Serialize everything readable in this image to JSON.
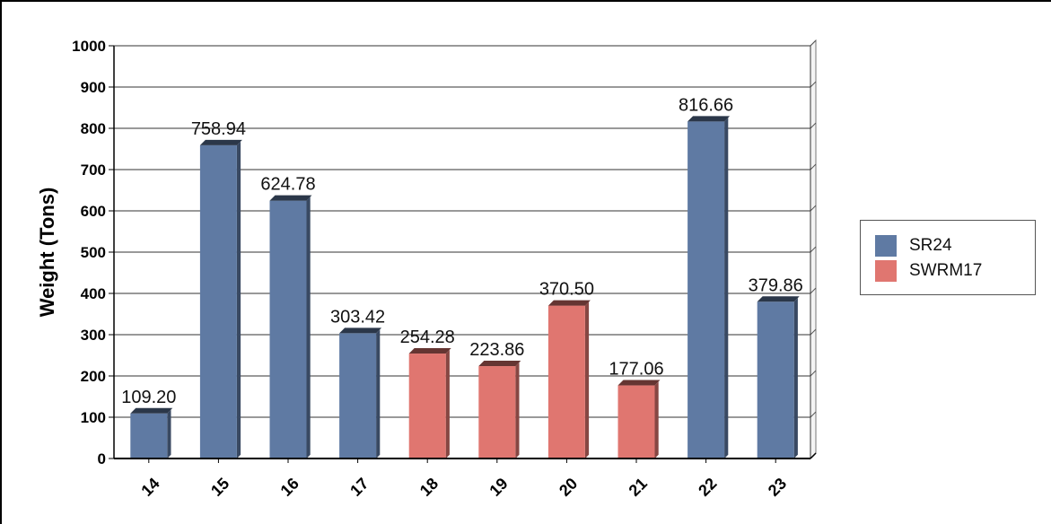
{
  "chart_data": {
    "type": "bar",
    "categories": [
      "14",
      "15",
      "16",
      "17",
      "18",
      "19",
      "20",
      "21",
      "22",
      "23"
    ],
    "values": [
      109.2,
      758.94,
      624.78,
      303.42,
      254.28,
      223.86,
      370.5,
      177.06,
      816.66,
      379.86
    ],
    "labels": [
      "109.20",
      "758.94",
      "624.78",
      "303.42",
      "254.28",
      "223.86",
      "370.50",
      "177.06",
      "816.66",
      "379.86"
    ],
    "series_of_bar": [
      "SR24",
      "SR24",
      "SR24",
      "SR24",
      "SWRM17",
      "SWRM17",
      "SWRM17",
      "SWRM17",
      "SR24",
      "SR24"
    ],
    "series": [
      {
        "name": "SR24",
        "color": "#5f7aa3",
        "categories": [
          "14",
          "15",
          "16",
          "17",
          "22",
          "23"
        ]
      },
      {
        "name": "SWRM17",
        "color": "#e07670",
        "categories": [
          "18",
          "19",
          "20",
          "21"
        ]
      }
    ],
    "ylabel": "Weight (Tons)",
    "xlabel": "",
    "title": "",
    "ylim": [
      0,
      1000
    ],
    "yticks": [
      "0",
      "100",
      "200",
      "300",
      "400",
      "500",
      "600",
      "700",
      "800",
      "900",
      "1000"
    ],
    "grid": true,
    "legend_position": "right"
  },
  "legend": [
    {
      "label": "SR24",
      "color": "#5f7aa3"
    },
    {
      "label": "SWRM17",
      "color": "#e07670"
    }
  ]
}
